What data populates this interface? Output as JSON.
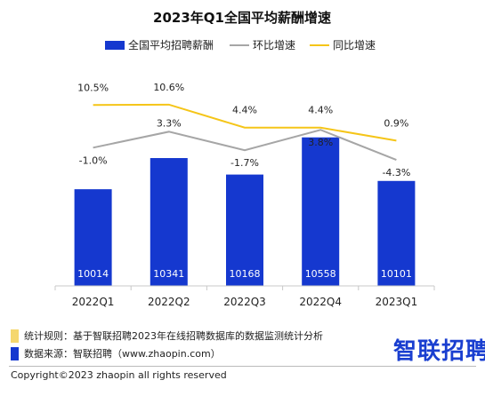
{
  "chart_data": {
    "type": "bar",
    "title": "2023年Q1全国平均薪酬增速",
    "categories": [
      "2022Q1",
      "2022Q2",
      "2022Q3",
      "2022Q4",
      "2023Q1"
    ],
    "series": [
      {
        "name": "全国平均招聘薪酬",
        "type": "bar",
        "values": [
          10014,
          10341,
          10168,
          10558,
          10101
        ],
        "color": "#1538cf"
      },
      {
        "name": "环比增速",
        "type": "line",
        "values": [
          -1.0,
          3.3,
          -1.7,
          3.8,
          -4.3
        ],
        "labels": [
          "-1.0%",
          "3.3%",
          "-1.7%",
          "3.8%",
          "-4.3%"
        ],
        "color": "#a6a6a6"
      },
      {
        "name": "同比增速",
        "type": "line",
        "values": [
          10.5,
          10.6,
          4.4,
          4.4,
          0.9
        ],
        "labels": [
          "10.5%",
          "10.6%",
          "4.4%",
          "4.4%",
          "0.9%"
        ],
        "color": "#f5c518"
      }
    ],
    "legend_position": "top",
    "grid": false
  },
  "footer": {
    "rule_text": "统计规则：基于智联招聘2023年在线招聘数据库的数据监测统计分析",
    "source_text": "数据来源：智联招聘（www.zhaopin.com）",
    "rule_color": "#f5d76e",
    "source_color": "#1538cf",
    "logo_text": "智联招聘",
    "copyright": "Copyright©2023 zhaopin all rights reserved"
  }
}
